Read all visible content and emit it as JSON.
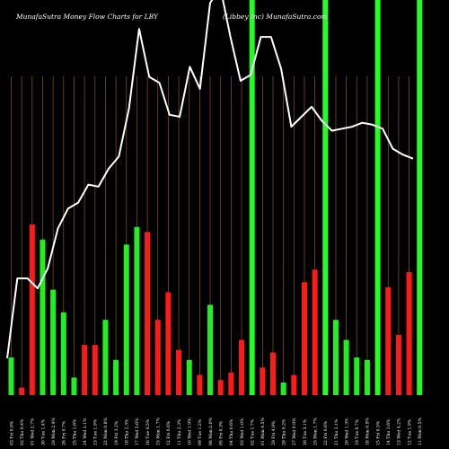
{
  "header": {
    "left": "MunafaSutra  Money Flow  Charts for LBY",
    "mid": "(Libbey Inc) MunafaSutra.com"
  },
  "colors": {
    "background": "#000000",
    "up": "#22ee22",
    "down": "#ff1a1a",
    "up_highlight": "#22ff22",
    "grid": "#8b5a10",
    "line": "#ffffff",
    "text": "#ffffff"
  },
  "chart_data": {
    "type": "bar",
    "series_count": 2,
    "bars": [
      {
        "label": "03 Fri 0.8%",
        "dir": "up",
        "value": 15,
        "highlight": false
      },
      {
        "label": "02 Thu 0.4%",
        "dir": "down",
        "value": 3,
        "highlight": false
      },
      {
        "label": "01 Wed 2.7%",
        "dir": "down",
        "value": 68,
        "highlight": false
      },
      {
        "label": "30 Tue 1.4%",
        "dir": "up",
        "value": 62,
        "highlight": false
      },
      {
        "label": "29 Mon 2.9%",
        "dir": "up",
        "value": 42,
        "highlight": false
      },
      {
        "label": "26 Fri 0.7%",
        "dir": "up",
        "value": 33,
        "highlight": false
      },
      {
        "label": "25 Thu 1.6%",
        "dir": "up",
        "value": 7,
        "highlight": false
      },
      {
        "label": "24 Wed 2.1%",
        "dir": "down",
        "value": 20,
        "highlight": false
      },
      {
        "label": "23 Tue 1.9%",
        "dir": "down",
        "value": 20,
        "highlight": false
      },
      {
        "label": "22 Mon 0.8%",
        "dir": "up",
        "value": 30,
        "highlight": false
      },
      {
        "label": "19 Fri 3.2%",
        "dir": "up",
        "value": 14,
        "highlight": false
      },
      {
        "label": "18 Thu 2.3%",
        "dir": "up",
        "value": 60,
        "highlight": false
      },
      {
        "label": "17 Wed 5.6%",
        "dir": "up",
        "value": 67,
        "highlight": false
      },
      {
        "label": "16 Tue 4.5%",
        "dir": "down",
        "value": 65,
        "highlight": false
      },
      {
        "label": "15 Mon 1.7%",
        "dir": "down",
        "value": 30,
        "highlight": false
      },
      {
        "label": "12 Fri 0.6%",
        "dir": "down",
        "value": 41,
        "highlight": false
      },
      {
        "label": "11 Thu 2.3%",
        "dir": "down",
        "value": 18,
        "highlight": false
      },
      {
        "label": "10 Wed 1.9%",
        "dir": "up",
        "value": 14,
        "highlight": false
      },
      {
        "label": "09 Tue 1.2%",
        "dir": "down",
        "value": 8,
        "highlight": false
      },
      {
        "label": "08 Mon 2.0%",
        "dir": "up",
        "value": 36,
        "highlight": false
      },
      {
        "label": "05 Fri 0.3%",
        "dir": "down",
        "value": 6,
        "highlight": false
      },
      {
        "label": "04 Thu 0.6%",
        "dir": "down",
        "value": 9,
        "highlight": false
      },
      {
        "label": "03 Wed 1.0%",
        "dir": "down",
        "value": 22,
        "highlight": false
      },
      {
        "label": "02 Tue 1.7%",
        "dir": "up",
        "value": 100,
        "highlight": true
      },
      {
        "label": "01 Mon 4.5%",
        "dir": "down",
        "value": 11,
        "highlight": false
      },
      {
        "label": "29 Fri 4.9%",
        "dir": "down",
        "value": 17,
        "highlight": false
      },
      {
        "label": "28 Thu 0.2%",
        "dir": "up",
        "value": 5,
        "highlight": false
      },
      {
        "label": "27 Wed 0.9%",
        "dir": "down",
        "value": 8,
        "highlight": false
      },
      {
        "label": "26 Tue 3.1%",
        "dir": "down",
        "value": 45,
        "highlight": false
      },
      {
        "label": "25 Mon 1.7%",
        "dir": "down",
        "value": 50,
        "highlight": false
      },
      {
        "label": "22 Fri 0.6%",
        "dir": "up",
        "value": 100,
        "highlight": true
      },
      {
        "label": "21 Thu 2.1%",
        "dir": "up",
        "value": 30,
        "highlight": false
      },
      {
        "label": "20 Wed 1.3%",
        "dir": "up",
        "value": 22,
        "highlight": false
      },
      {
        "label": "19 Tue 0.7%",
        "dir": "up",
        "value": 15,
        "highlight": false
      },
      {
        "label": "18 Mon 0.9%",
        "dir": "up",
        "value": 14,
        "highlight": false
      },
      {
        "label": "15 Fri 0.5%",
        "dir": "up",
        "value": 100,
        "highlight": true
      },
      {
        "label": "14 Thu 3.6%",
        "dir": "down",
        "value": 43,
        "highlight": false
      },
      {
        "label": "13 Wed 4.2%",
        "dir": "down",
        "value": 24,
        "highlight": false
      },
      {
        "label": "12 Tue 1.9%",
        "dir": "down",
        "value": 49,
        "highlight": false
      },
      {
        "label": "11 Mon 0.5%",
        "dir": "up",
        "value": 100,
        "highlight": true
      }
    ],
    "price_line": [
      5,
      45,
      45,
      40,
      50,
      70,
      80,
      83,
      92,
      91,
      100,
      106,
      130,
      170,
      146,
      143,
      127,
      126,
      151,
      140,
      183,
      191,
      166,
      144,
      147,
      166,
      166,
      150,
      121,
      126,
      131,
      124,
      119,
      120,
      121,
      123,
      122,
      120,
      110,
      107,
      105
    ],
    "price_range": [
      0,
      180
    ]
  }
}
